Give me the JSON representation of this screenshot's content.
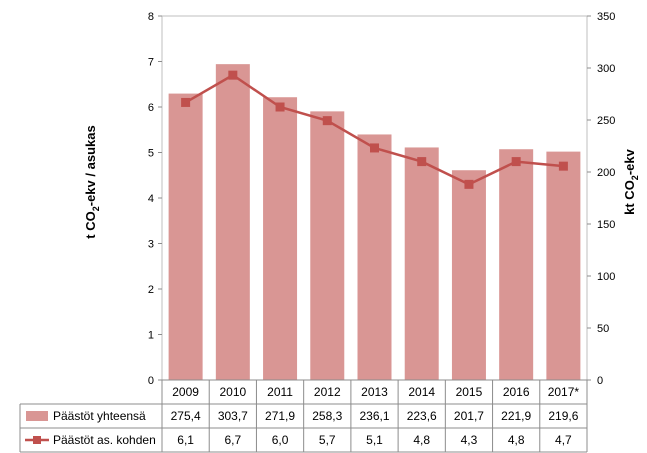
{
  "chart_data": {
    "type": "bar",
    "categories": [
      "2009",
      "2010",
      "2011",
      "2012",
      "2013",
      "2014",
      "2015",
      "2016",
      "2017*"
    ],
    "series": [
      {
        "name": "Päästöt yhteensä",
        "kind": "bar",
        "axis": "right",
        "values": [
          275.4,
          303.7,
          271.9,
          258.3,
          236.1,
          223.6,
          201.7,
          221.9,
          219.6
        ],
        "labels": [
          "275,4",
          "303,7",
          "271,9",
          "258,3",
          "236,1",
          "223,6",
          "201,7",
          "221,9",
          "219,6"
        ],
        "color": "#D99694"
      },
      {
        "name": "Päästöt as. kohden",
        "kind": "line",
        "axis": "left",
        "values": [
          6.1,
          6.7,
          6.0,
          5.7,
          5.1,
          4.8,
          4.3,
          4.8,
          4.7
        ],
        "labels": [
          "6,1",
          "6,7",
          "6,0",
          "5,7",
          "5,1",
          "4,8",
          "4,3",
          "4,8",
          "4,7"
        ],
        "color": "#C0504D"
      }
    ],
    "ylabel_left": {
      "pre": "t CO",
      "sub": "2",
      "post": "-ekv / asukas"
    },
    "ylabel_right": {
      "pre": "kt CO",
      "sub": "2",
      "post": "-ekv"
    },
    "ylim_left": [
      0,
      8
    ],
    "yticks_left": [
      "0",
      "1",
      "2",
      "3",
      "4",
      "5",
      "6",
      "7",
      "8"
    ],
    "ylim_right": [
      0,
      350
    ],
    "yticks_right": [
      "0",
      "50",
      "100",
      "150",
      "200",
      "250",
      "300",
      "350"
    ],
    "grid": false,
    "legend": "data-table"
  }
}
